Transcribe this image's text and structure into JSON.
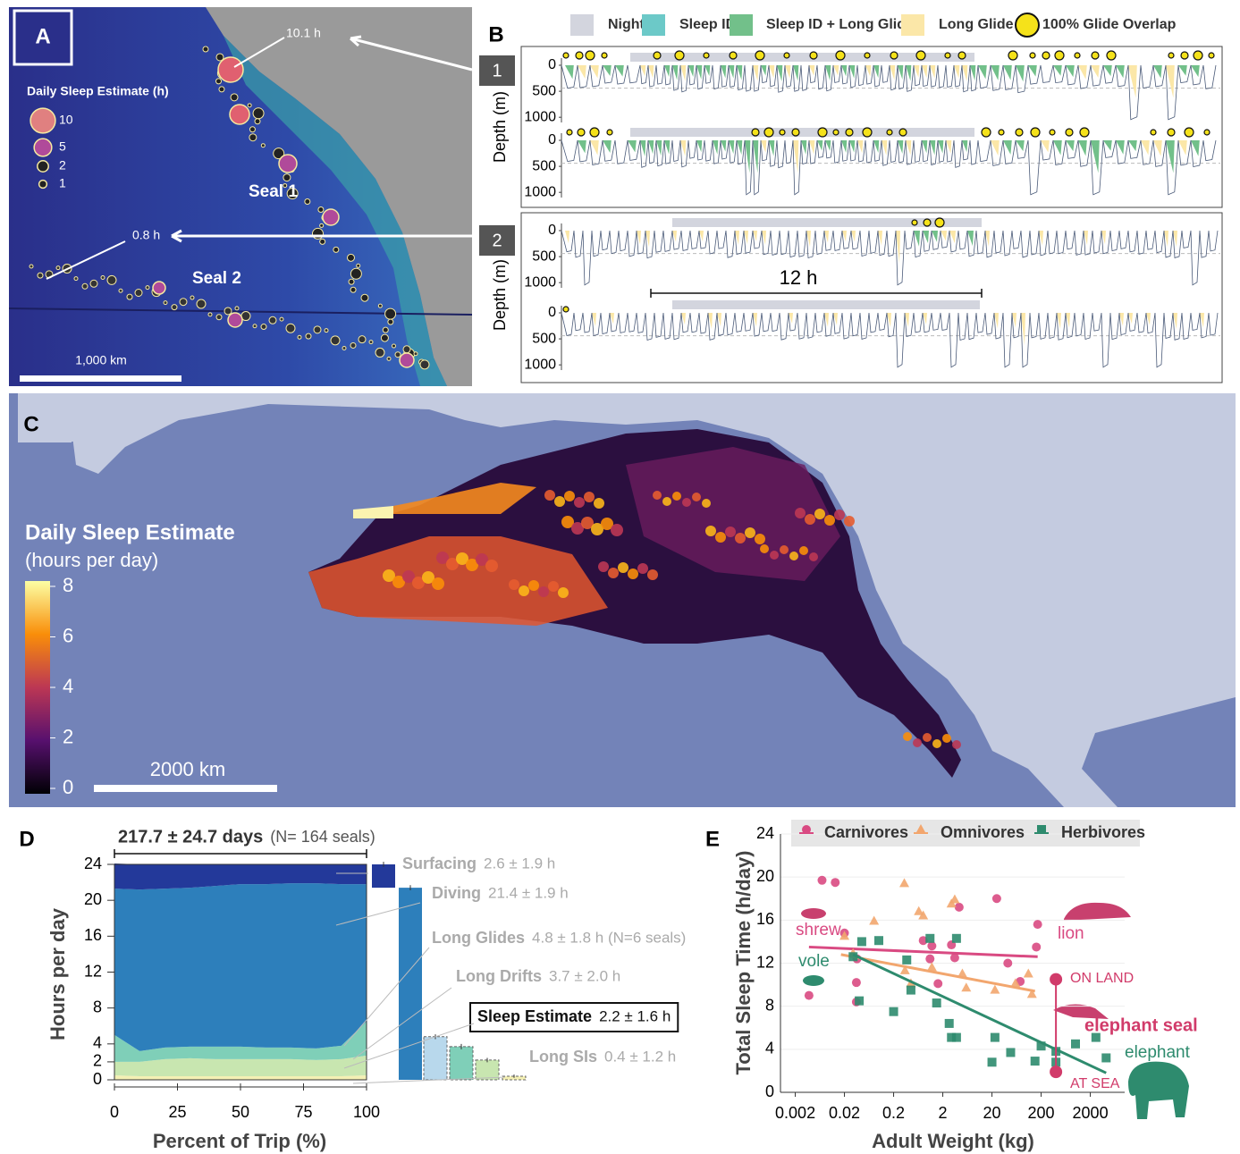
{
  "chart_data": [
    {
      "type": "map",
      "panel": "A",
      "legend_title": "Daily Sleep Estimate (h)",
      "legend_sizes": [
        10,
        5,
        2,
        1
      ],
      "labels": [
        "Seal 1",
        "Seal 2"
      ],
      "callouts": [
        "10.1 h",
        "0.8 h"
      ],
      "scale_bar": "1,000 km"
    },
    {
      "type": "dive-profile",
      "panel": "B",
      "legend": [
        "Night",
        "Sleep ID",
        "Sleep ID + Long Glide",
        "Long Glide",
        "100% Glide Overlap"
      ],
      "colors": [
        "#d3d5de",
        "#6cc9c8",
        "#72c08a",
        "#fbe7a8",
        "#f5e21a"
      ],
      "seals": [
        "1",
        "2"
      ],
      "ylabel": "Depth (m)",
      "ylim": [
        0,
        1100
      ],
      "yticks": [
        0,
        500,
        1000
      ],
      "duration": "12 h"
    },
    {
      "type": "heatmap-map",
      "panel": "C",
      "colorbar_title": "Daily Sleep Estimate",
      "colorbar_subtitle": "(hours per day)",
      "clim": [
        0,
        8
      ],
      "cticks": [
        0,
        2,
        4,
        6,
        8
      ],
      "scale_bar": "2000 km"
    },
    {
      "type": "area",
      "panel": "D",
      "title": "217.7 ± 24.7 days",
      "subtitle": "(N= 164 seals)",
      "xlabel": "Percent of Trip (%)",
      "ylabel": "Hours per day",
      "xlim": [
        0,
        100
      ],
      "xticks": [
        0,
        25,
        50,
        75,
        100
      ],
      "ylim": [
        0,
        24
      ],
      "yticks": [
        0,
        2,
        4,
        8,
        12,
        16,
        20,
        24
      ],
      "x": [
        0,
        10,
        20,
        30,
        40,
        50,
        60,
        70,
        80,
        90,
        100
      ],
      "series": [
        {
          "color": "#f4f0b4",
          "values": [
            0.5,
            0.4,
            0.4,
            0.4,
            0.4,
            0.4,
            0.4,
            0.4,
            0.4,
            0.4,
            0.5
          ]
        },
        {
          "color": "#c8e6b0",
          "values": [
            1.5,
            1.6,
            1.9,
            2.0,
            1.9,
            1.9,
            1.9,
            1.9,
            1.8,
            1.9,
            2.2
          ]
        },
        {
          "color": "#7fcfb8",
          "values": [
            3.0,
            1.2,
            1.3,
            1.3,
            1.4,
            1.4,
            1.3,
            1.3,
            1.3,
            1.5,
            3.8
          ]
        },
        {
          "color": "#2d7fbb",
          "values": [
            16.3,
            18.0,
            17.7,
            17.7,
            17.9,
            18.1,
            18.2,
            18.3,
            18.4,
            18.0,
            15.3
          ]
        },
        {
          "color": "#23399a",
          "values": [
            2.8,
            2.8,
            2.7,
            2.6,
            2.4,
            2.2,
            2.2,
            2.1,
            2.1,
            2.2,
            2.2
          ]
        }
      ],
      "summary": {
        "categories": [
          "Surfacing",
          "Diving",
          "Long Glides",
          "Long Drifts",
          "Sleep Estimate",
          "Long SIs"
        ],
        "values": [
          2.6,
          21.4,
          4.8,
          3.7,
          2.2,
          0.4
        ],
        "errors": [
          1.9,
          1.9,
          1.8,
          2.0,
          1.6,
          1.2
        ],
        "value_labels": [
          "2.6 ± 1.9 h",
          "21.4 ± 1.9 h",
          "4.8 ± 1.8 h (N=6 seals)",
          "3.7 ± 2.0 h",
          "2.2 ± 1.6 h",
          "0.4 ± 1.2 h"
        ],
        "colors": [
          "#23399a",
          "#2d7fbb",
          "#b8d8ec",
          "#7fcfb8",
          "#c8e6b0",
          "#f4f0b4"
        ]
      }
    },
    {
      "type": "scatter",
      "panel": "E",
      "xlabel": "Adult Weight (kg)",
      "ylabel": "Total Sleep Time (h/day)",
      "log_x": true,
      "grid": true,
      "xlim": [
        0.001,
        10000
      ],
      "xticks": [
        0.002,
        0.02,
        0.2,
        2,
        20,
        200,
        2000
      ],
      "ylim": [
        0,
        24
      ],
      "yticks": [
        0,
        4,
        8,
        12,
        16,
        20,
        24
      ],
      "series": [
        {
          "name": "Carnivores",
          "color": "#d94a82",
          "marker": "circle",
          "x": [
            0.007,
            0.013,
            0.02,
            0.0038,
            0.036,
            0.035,
            0.035,
            0.8,
            1.2,
            1.1,
            3,
            3.5,
            4.3,
            1.6,
            25,
            42,
            75,
            160,
            170
          ],
          "values": [
            19.7,
            19.5,
            14.8,
            9.0,
            12.4,
            10.2,
            8.4,
            14.1,
            13.6,
            12.4,
            13.7,
            12.5,
            17.2,
            10.1,
            18.0,
            12.0,
            10.3,
            13.5,
            15.6
          ],
          "trend": {
            "x": [
              0.0038,
              170
            ],
            "values": [
              13.5,
              12.6
            ]
          }
        },
        {
          "name": "Omnivores",
          "color": "#f2a66e",
          "marker": "triangle",
          "x": [
            0.02,
            0.03,
            0.08,
            0.33,
            0.65,
            0.8,
            3.5,
            3,
            0.34,
            0.45,
            1.2,
            5,
            6,
            23,
            60,
            110,
            130
          ],
          "values": [
            14.5,
            12.9,
            15.9,
            19.4,
            16.8,
            16.4,
            17.9,
            17.5,
            11.3,
            10.1,
            11.6,
            11.0,
            9.7,
            9.5,
            10.1,
            11.0,
            9.1
          ],
          "trend": {
            "x": [
              0.017,
              150
            ],
            "values": [
              12.8,
              9.4
            ]
          }
        },
        {
          "name": "Herbivores",
          "color": "#2e8b6e",
          "marker": "square",
          "x": [
            0.03,
            0.045,
            0.1,
            0.04,
            0.2,
            0.37,
            0.45,
            1.1,
            3.8,
            1.5,
            2.7,
            3,
            3.8,
            23,
            20,
            48,
            150,
            200,
            400,
            1000,
            2600,
            4200,
            400
          ],
          "values": [
            12.6,
            14.0,
            14.1,
            8.5,
            7.5,
            12.3,
            9.5,
            14.3,
            14.3,
            8.3,
            6.4,
            5.1,
            5.1,
            5.1,
            2.8,
            3.7,
            2.9,
            4.3,
            3.8,
            4.5,
            5.1,
            3.2,
            2.8
          ],
          "trend": {
            "x": [
              0.03,
              4200
            ],
            "values": [
              12.8,
              1.8
            ]
          }
        }
      ],
      "elephant_seal": {
        "label": "elephant seal",
        "x": 400,
        "on_land": 10.5,
        "at_sea": 1.9,
        "on_land_label": "ON LAND",
        "at_sea_label": "AT SEA",
        "color": "#d13b6a"
      },
      "animal_labels": [
        "shrew",
        "vole",
        "lion",
        "elephant"
      ]
    }
  ]
}
